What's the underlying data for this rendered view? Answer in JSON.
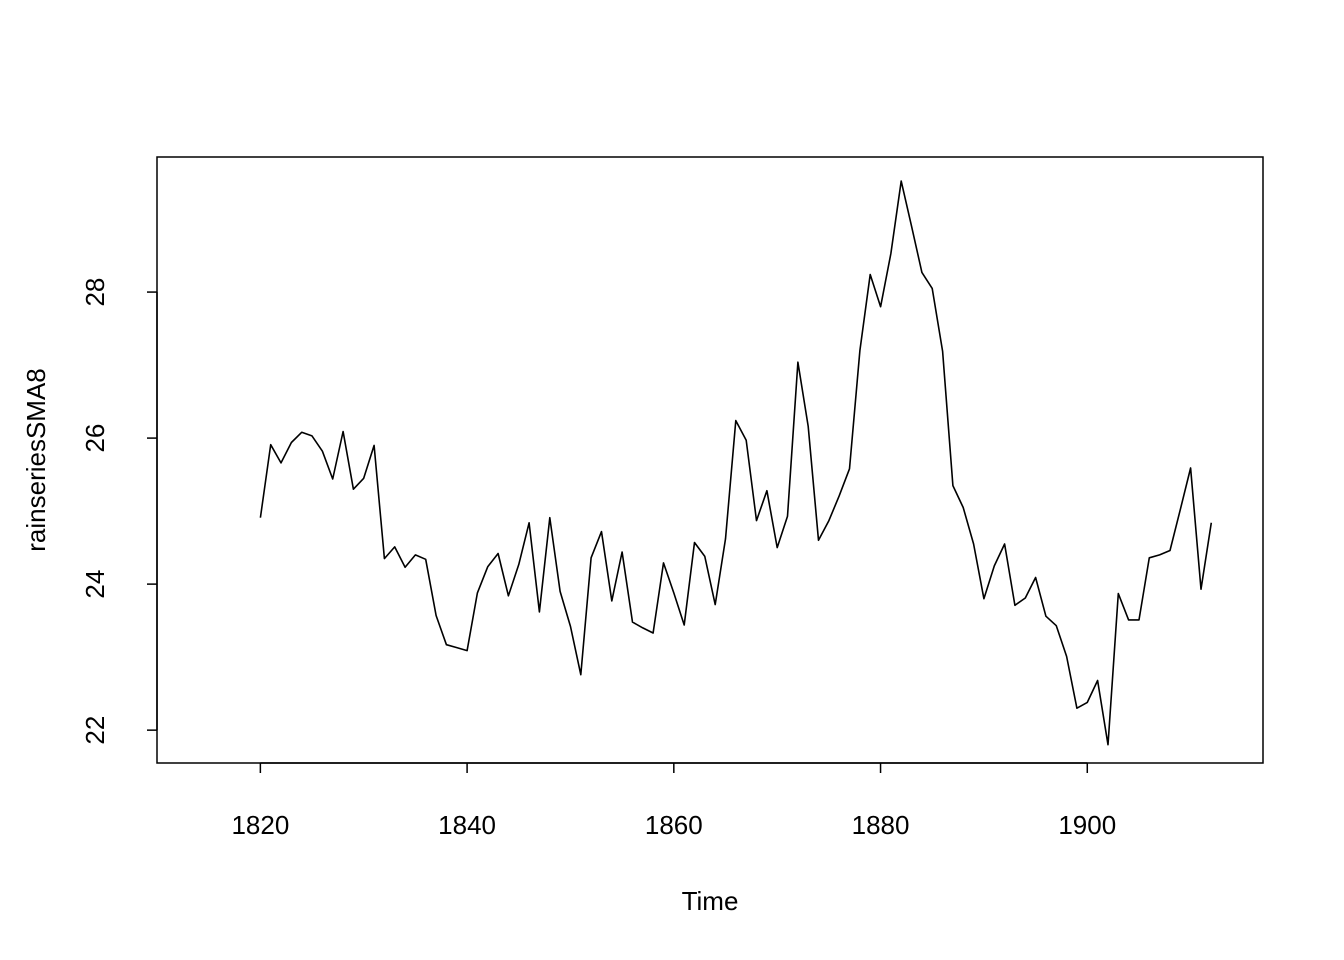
{
  "chart_data": {
    "type": "line",
    "xlabel": "Time",
    "ylabel": "rainseriesSMA8",
    "xlim": [
      1810,
      1917
    ],
    "ylim": [
      21.55,
      29.85
    ],
    "x_ticks": [
      1820,
      1840,
      1860,
      1880,
      1900
    ],
    "y_ticks": [
      22,
      24,
      26,
      28
    ],
    "grid": false,
    "legend": "none",
    "line_color": "#000000",
    "series": [
      {
        "x": [
          1820,
          1821,
          1822,
          1823,
          1824,
          1825,
          1826,
          1827,
          1828,
          1829,
          1830,
          1831,
          1832,
          1833,
          1834,
          1835,
          1836,
          1837,
          1838,
          1839,
          1840,
          1841,
          1842,
          1843,
          1844,
          1845,
          1846,
          1847,
          1848,
          1849,
          1850,
          1851,
          1852,
          1853,
          1854,
          1855,
          1856,
          1857,
          1858,
          1859,
          1860,
          1861,
          1862,
          1863,
          1864,
          1865,
          1866,
          1867,
          1868,
          1869,
          1870,
          1871,
          1872,
          1873,
          1874,
          1875,
          1876,
          1877,
          1878,
          1879,
          1880,
          1881,
          1882,
          1883,
          1884,
          1885,
          1886,
          1887,
          1888,
          1889,
          1890,
          1891,
          1892,
          1893,
          1894,
          1895,
          1896,
          1897,
          1898,
          1899,
          1900,
          1901,
          1902,
          1903,
          1904,
          1905,
          1906,
          1907,
          1908,
          1909,
          1910,
          1911,
          1912
        ],
        "values": [
          24.91,
          25.91,
          25.66,
          25.94,
          26.08,
          26.03,
          25.82,
          25.44,
          26.09,
          25.3,
          25.45,
          25.9,
          24.35,
          24.51,
          24.23,
          24.4,
          24.34,
          23.57,
          23.17,
          23.13,
          23.09,
          23.88,
          24.24,
          24.42,
          23.84,
          24.27,
          24.84,
          23.62,
          24.91,
          23.9,
          23.42,
          22.76,
          24.36,
          24.72,
          23.77,
          24.44,
          23.48,
          23.4,
          23.33,
          24.29,
          23.88,
          23.44,
          24.57,
          24.38,
          23.72,
          24.62,
          26.24,
          25.97,
          24.87,
          25.28,
          24.5,
          24.93,
          27.04,
          26.16,
          24.6,
          24.87,
          25.21,
          25.58,
          27.2,
          28.24,
          27.8,
          28.53,
          29.52,
          28.9,
          28.27,
          28.05,
          27.19,
          25.35,
          25.05,
          24.55,
          23.8,
          24.25,
          24.55,
          23.71,
          23.81,
          24.09,
          23.56,
          23.43,
          23.01,
          22.3,
          22.38,
          22.68,
          21.8,
          23.87,
          23.51,
          23.51,
          24.36,
          24.4,
          24.46,
          25.02,
          25.59,
          23.93,
          24.84
        ]
      }
    ]
  }
}
